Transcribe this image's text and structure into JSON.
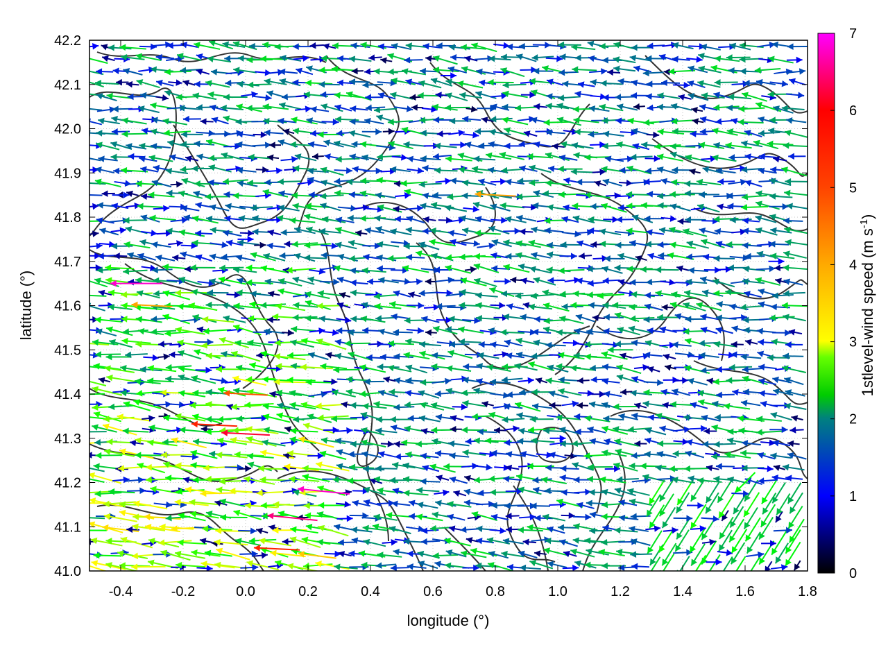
{
  "chart_data": {
    "type": "vector-field",
    "xlabel": "longitude (°)",
    "ylabel": "latitude (°)",
    "colorbar_label": "1stlevel-wind speed (m s",
    "colorbar_label_sup": "-1",
    "colorbar_label_end": ")",
    "xlim": [
      -0.5,
      1.8
    ],
    "ylim": [
      41.0,
      42.2
    ],
    "x_ticks": [
      -0.4,
      -0.2,
      0.0,
      0.2,
      0.4,
      0.6,
      0.8,
      1.0,
      1.2,
      1.4,
      1.6,
      1.8
    ],
    "x_tick_labels": [
      "-0.4",
      "-0.2",
      "0.0",
      "0.2",
      "0.4",
      "0.6",
      "0.8",
      "1.0",
      "1.2",
      "1.4",
      "1.6",
      "1.8"
    ],
    "y_ticks": [
      41.0,
      41.1,
      41.2,
      41.3,
      41.4,
      41.5,
      41.6,
      41.7,
      41.8,
      41.9,
      42.0,
      42.1,
      42.2
    ],
    "y_tick_labels": [
      "41.0",
      "41.1",
      "41.2",
      "41.3",
      "41.4",
      "41.5",
      "41.6",
      "41.7",
      "41.8",
      "41.9",
      "42.0",
      "42.1",
      "42.2"
    ],
    "colorbar_range": [
      0,
      7
    ],
    "colorbar_ticks": [
      0,
      1,
      2,
      3,
      4,
      5,
      6,
      7
    ],
    "colorbar_tick_labels": [
      "0",
      "1",
      "2",
      "3",
      "4",
      "5",
      "6",
      "7"
    ],
    "colormap": [
      "#000000",
      "#0000ff",
      "#008080",
      "#00ff00",
      "#ffff00",
      "#ffa500",
      "#ff0000",
      "#ff00ff"
    ],
    "grid": "dotted",
    "contours": "topography (dark gray)",
    "vectors": [
      {
        "x": -0.35,
        "y": 41.65,
        "u": -1.0,
        "v": 0.0,
        "speed": 6.8
      },
      {
        "x": -0.3,
        "y": 41.6,
        "u": -1.0,
        "v": 0.05,
        "speed": 5.0
      },
      {
        "x": -0.1,
        "y": 41.33,
        "u": -1.0,
        "v": 0.05,
        "speed": 5.8
      },
      {
        "x": 0.0,
        "y": 41.31,
        "u": -1.0,
        "v": 0.05,
        "speed": 6.2
      },
      {
        "x": 0.25,
        "y": 41.18,
        "u": -1.0,
        "v": 0.1,
        "speed": 6.8
      },
      {
        "x": 0.15,
        "y": 41.12,
        "u": -1.0,
        "v": 0.1,
        "speed": 6.5
      },
      {
        "x": 0.1,
        "y": 41.05,
        "u": -1.0,
        "v": 0.05,
        "speed": 5.8
      },
      {
        "x": 0.0,
        "y": 41.4,
        "u": -1.0,
        "v": 0.05,
        "speed": 5.5
      },
      {
        "x": 0.8,
        "y": 41.85,
        "u": -1.0,
        "v": 0.05,
        "speed": 5.0
      },
      {
        "x": 1.0,
        "y": 41.3,
        "u": 1.0,
        "v": 0.0,
        "speed": 1.0
      },
      {
        "x": 1.5,
        "y": 41.02,
        "u": 1.0,
        "v": 0.0,
        "speed": 1.0
      },
      {
        "x": 1.7,
        "y": 41.7,
        "u": 1.0,
        "v": 0.0,
        "speed": 1.0
      },
      {
        "x": -0.4,
        "y": 41.85,
        "u": 1.0,
        "v": 0.0,
        "speed": 1.2
      },
      {
        "x": 0.0,
        "y": 41.75,
        "u": 1.0,
        "v": 0.0,
        "speed": 1.0
      },
      {
        "x": 0.65,
        "y": 42.12,
        "u": 1.0,
        "v": 0.0,
        "speed": 1.0
      },
      {
        "x": 1.2,
        "y": 41.5,
        "u": -1.0,
        "v": 0.0,
        "speed": 2.5
      },
      {
        "x": 1.6,
        "y": 41.2,
        "u": -0.7,
        "v": -0.7,
        "speed": 3.0
      }
    ]
  }
}
